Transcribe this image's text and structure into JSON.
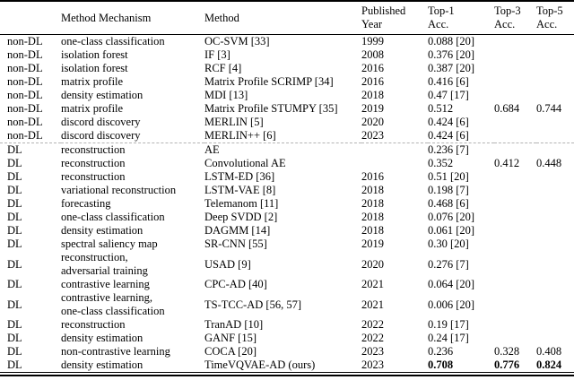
{
  "table": {
    "columns": [
      "category",
      "mechanism",
      "method",
      "year",
      "top1",
      "top3",
      "top5"
    ],
    "headers": {
      "category": "",
      "mechanism": "Method Mechanism",
      "method": "Method",
      "year": "Published\nYear",
      "top1": "Top-1\nAcc.",
      "top3": "Top-3\nAcc.",
      "top5": "Top-5\nAcc."
    },
    "divider_after_index": 7,
    "rows": [
      {
        "category": "non-DL",
        "mechanism": "one-class classification",
        "method": "OC-SVM [33]",
        "year": "1999",
        "top1": "0.088 [20]",
        "top3": "",
        "top5": ""
      },
      {
        "category": "non-DL",
        "mechanism": "isolation forest",
        "method": "IF [3]",
        "year": "2008",
        "top1": "0.376 [20]",
        "top3": "",
        "top5": ""
      },
      {
        "category": "non-DL",
        "mechanism": "isolation forest",
        "method": "RCF [4]",
        "year": "2016",
        "top1": "0.387 [20]",
        "top3": "",
        "top5": ""
      },
      {
        "category": "non-DL",
        "mechanism": "matrix profile",
        "method": "Matrix Profile SCRIMP [34]",
        "year": "2016",
        "top1": "0.416 [6]",
        "top3": "",
        "top5": ""
      },
      {
        "category": "non-DL",
        "mechanism": "density estimation",
        "method": "MDI [13]",
        "year": "2018",
        "top1": "0.47 [17]",
        "top3": "",
        "top5": ""
      },
      {
        "category": "non-DL",
        "mechanism": "matrix profile",
        "method": "Matrix Profile STUMPY [35]",
        "year": "2019",
        "top1": "0.512",
        "top3": "0.684",
        "top5": "0.744"
      },
      {
        "category": "non-DL",
        "mechanism": "discord discovery",
        "method": "MERLIN [5]",
        "year": "2020",
        "top1": "0.424 [6]",
        "top3": "",
        "top5": ""
      },
      {
        "category": "non-DL",
        "mechanism": "discord discovery",
        "method": "MERLIN++ [6]",
        "year": "2023",
        "top1": "0.424 [6]",
        "top3": "",
        "top5": ""
      },
      {
        "category": "DL",
        "mechanism": "reconstruction",
        "method": "AE",
        "year": "",
        "top1": "0.236 [7]",
        "top3": "",
        "top5": ""
      },
      {
        "category": "DL",
        "mechanism": "reconstruction",
        "method": "Convolutional AE",
        "year": "",
        "top1": "0.352",
        "top3": "0.412",
        "top5": "0.448"
      },
      {
        "category": "DL",
        "mechanism": "reconstruction",
        "method": "LSTM-ED [36]",
        "year": "2016",
        "top1": "0.51 [20]",
        "top3": "",
        "top5": ""
      },
      {
        "category": "DL",
        "mechanism": "variational reconstruction",
        "method": "LSTM-VAE [8]",
        "year": "2018",
        "top1": "0.198 [7]",
        "top3": "",
        "top5": ""
      },
      {
        "category": "DL",
        "mechanism": "forecasting",
        "method": "Telemanom [11]",
        "year": "2018",
        "top1": "0.468 [6]",
        "top3": "",
        "top5": ""
      },
      {
        "category": "DL",
        "mechanism": "one-class classification",
        "method": "Deep SVDD [2]",
        "year": "2018",
        "top1": "0.076 [20]",
        "top3": "",
        "top5": ""
      },
      {
        "category": "DL",
        "mechanism": "density estimation",
        "method": "DAGMM [14]",
        "year": "2018",
        "top1": "0.061 [20]",
        "top3": "",
        "top5": ""
      },
      {
        "category": "DL",
        "mechanism": "spectral saliency map",
        "method": "SR-CNN [55]",
        "year": "2019",
        "top1": "0.30 [20]",
        "top3": "",
        "top5": ""
      },
      {
        "category": "DL",
        "mechanism": "reconstruction,\nadversarial training",
        "method": "USAD [9]",
        "year": "2020",
        "top1": "0.276 [7]",
        "top3": "",
        "top5": ""
      },
      {
        "category": "DL",
        "mechanism": "contrastive learning",
        "method": "CPC-AD [40]",
        "year": "2021",
        "top1": "0.064 [20]",
        "top3": "",
        "top5": ""
      },
      {
        "category": "DL",
        "mechanism": "contrastive learning,\none-class classification",
        "method": "TS-TCC-AD [56, 57]",
        "year": "2021",
        "top1": "0.006 [20]",
        "top3": "",
        "top5": ""
      },
      {
        "category": "DL",
        "mechanism": "reconstruction",
        "method": "TranAD [10]",
        "year": "2022",
        "top1": "0.19 [17]",
        "top3": "",
        "top5": ""
      },
      {
        "category": "DL",
        "mechanism": "density estimation",
        "method": "GANF [15]",
        "year": "2022",
        "top1": "0.24 [17]",
        "top3": "",
        "top5": ""
      },
      {
        "category": "DL",
        "mechanism": "non-contrastive learning",
        "method": "COCA [20]",
        "year": "2023",
        "top1": "0.236",
        "top3": "0.328",
        "top5": "0.408"
      },
      {
        "category": "DL",
        "mechanism": "density estimation",
        "method": "TimeVQVAE-AD (ours)",
        "year": "2023",
        "top1": "0.708",
        "top3": "0.776",
        "top5": "0.824",
        "bold_scores": true
      }
    ]
  },
  "colors": {
    "background": "#ffffff",
    "text": "#000000",
    "rule": "#000000",
    "section_divider": "#b3b3b3"
  }
}
